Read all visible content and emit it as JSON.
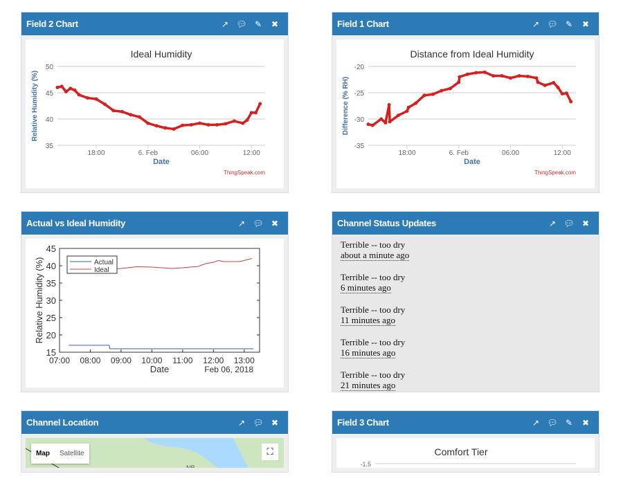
{
  "panels": {
    "p1": {
      "title": "Field 2 Chart"
    },
    "p2": {
      "title": "Field 1 Chart"
    },
    "p3": {
      "title": "Actual vs Ideal Humidity"
    },
    "p4": {
      "title": "Channel Status Updates"
    },
    "p5": {
      "title": "Channel Location"
    },
    "p6": {
      "title": "Field 3 Chart"
    }
  },
  "icons": [
    "external-link-icon",
    "comment-icon",
    "pencil-icon",
    "close-icon"
  ],
  "watermark": "ThingSpeak.com",
  "status_updates": [
    {
      "text": "Terrible -- too dry",
      "ago": "about a minute ago"
    },
    {
      "text": "Terrible -- too dry",
      "ago": "6 minutes ago"
    },
    {
      "text": "Terrible -- too dry",
      "ago": "11 minutes ago"
    },
    {
      "text": "Terrible -- too dry",
      "ago": "16 minutes ago"
    },
    {
      "text": "Terrible -- too dry",
      "ago": "21 minutes ago"
    }
  ],
  "map": {
    "map_label": "Map",
    "satellite_label": "Satellite",
    "region_label": "NB"
  },
  "colors": {
    "header": "#2c7bb6",
    "thingspeak_line": "#d62020",
    "actual": "#3060b0",
    "ideal": "#d04040"
  },
  "chart_data": [
    {
      "type": "line",
      "title": "Ideal Humidity",
      "xlabel": "Date",
      "ylabel": "Relative Humidity (%)",
      "ylim": [
        35,
        50
      ],
      "yticks": [
        35,
        40,
        45,
        50
      ],
      "xticks": [
        {
          "t": "2018-02-05 18:00",
          "label": "18:00"
        },
        {
          "t": "2018-02-06 00:00",
          "label": "6. Feb"
        },
        {
          "t": "2018-02-06 06:00",
          "label": "06:00"
        },
        {
          "t": "2018-02-06 12:00",
          "label": "12:00"
        }
      ],
      "xlim": [
        "2018-02-05 13:30",
        "2018-02-06 13:35"
      ],
      "grid": true,
      "x": [
        "2018-02-05 13:30",
        "2018-02-05 14:00",
        "2018-02-05 14:30",
        "2018-02-05 15:00",
        "2018-02-05 15:30",
        "2018-02-05 16:00",
        "2018-02-05 17:00",
        "2018-02-05 18:00",
        "2018-02-05 19:00",
        "2018-02-05 20:00",
        "2018-02-05 21:00",
        "2018-02-05 22:00",
        "2018-02-05 23:00",
        "2018-02-06 00:00",
        "2018-02-06 01:00",
        "2018-02-06 02:00",
        "2018-02-06 03:00",
        "2018-02-06 04:00",
        "2018-02-06 05:00",
        "2018-02-06 06:00",
        "2018-02-06 07:00",
        "2018-02-06 08:00",
        "2018-02-06 09:00",
        "2018-02-06 10:00",
        "2018-02-06 11:00",
        "2018-02-06 11:30",
        "2018-02-06 12:00",
        "2018-02-06 12:30",
        "2018-02-06 13:00"
      ],
      "values": [
        46,
        46.2,
        45.2,
        45.8,
        45.5,
        44.6,
        44,
        43.8,
        42.8,
        41.6,
        41.4,
        40.8,
        40.4,
        39.2,
        38.7,
        38.3,
        38.1,
        38.8,
        38.9,
        39.2,
        38.9,
        38.9,
        39.1,
        39.6,
        39.2,
        39.8,
        41.2,
        41.2,
        42.9
      ]
    },
    {
      "type": "line",
      "title": "Distance from Ideal Humidity",
      "xlabel": "Date",
      "ylabel": "Difference (% RH)",
      "ylim": [
        -35,
        -20
      ],
      "yticks": [
        -35,
        -30,
        -25,
        -20
      ],
      "xticks": [
        {
          "t": "2018-02-05 18:00",
          "label": "18:00"
        },
        {
          "t": "2018-02-06 00:00",
          "label": "6. Feb"
        },
        {
          "t": "2018-02-06 06:00",
          "label": "06:00"
        },
        {
          "t": "2018-02-06 12:00",
          "label": "12:00"
        }
      ],
      "xlim": [
        "2018-02-05 13:30",
        "2018-02-06 13:35"
      ],
      "grid": true,
      "x": [
        "2018-02-05 13:30",
        "2018-02-05 14:00",
        "2018-02-05 15:00",
        "2018-02-05 15:30",
        "2018-02-05 15:55",
        "2018-02-05 16:00",
        "2018-02-05 17:00",
        "2018-02-05 18:00",
        "2018-02-05 18:10",
        "2018-02-05 19:00",
        "2018-02-05 20:00",
        "2018-02-05 21:00",
        "2018-02-05 22:00",
        "2018-02-05 23:00",
        "2018-02-06 00:00",
        "2018-02-06 00:05",
        "2018-02-06 01:00",
        "2018-02-06 02:00",
        "2018-02-06 03:00",
        "2018-02-06 04:00",
        "2018-02-06 05:00",
        "2018-02-06 06:00",
        "2018-02-06 07:00",
        "2018-02-06 08:00",
        "2018-02-06 09:00",
        "2018-02-06 09:10",
        "2018-02-06 10:00",
        "2018-02-06 11:00",
        "2018-02-06 11:30",
        "2018-02-06 12:00",
        "2018-02-06 12:30",
        "2018-02-06 13:00"
      ],
      "values": [
        -31,
        -31.2,
        -30,
        -30.7,
        -27.3,
        -30.5,
        -29.3,
        -28.5,
        -27.8,
        -27,
        -25.5,
        -25.3,
        -24.6,
        -24.2,
        -23,
        -22,
        -21.5,
        -21.2,
        -21.1,
        -21.8,
        -21.8,
        -22.2,
        -21.8,
        -21.9,
        -22.2,
        -23,
        -23.6,
        -23.1,
        -24,
        -25.2,
        -25.1,
        -26.7
      ]
    },
    {
      "type": "line",
      "xlabel": "Date",
      "xlabel2": "Feb 06, 2018",
      "ylabel": "Relative Humidity (%)",
      "ylim": [
        15,
        45
      ],
      "yticks": [
        15,
        20,
        25,
        30,
        35,
        40,
        45
      ],
      "xticks": [
        {
          "t": "2018-02-06 07:00",
          "label": "07:00"
        },
        {
          "t": "2018-02-06 08:00",
          "label": "08:00"
        },
        {
          "t": "2018-02-06 09:00",
          "label": "09:00"
        },
        {
          "t": "2018-02-06 10:00",
          "label": "10:00"
        },
        {
          "t": "2018-02-06 11:00",
          "label": "11:00"
        },
        {
          "t": "2018-02-06 12:00",
          "label": "12:00"
        },
        {
          "t": "2018-02-06 13:00",
          "label": "13:00"
        }
      ],
      "xlim": [
        "2018-02-06 07:00",
        "2018-02-06 13:30"
      ],
      "grid": false,
      "legend": "top-left",
      "series": [
        {
          "name": "Actual",
          "x": [
            "2018-02-06 07:18",
            "2018-02-06 08:37",
            "2018-02-06 08:38",
            "2018-02-06 13:18"
          ],
          "values": [
            17,
            17,
            16,
            16
          ]
        },
        {
          "name": "Ideal",
          "x": [
            "2018-02-06 07:18",
            "2018-02-06 08:30",
            "2018-02-06 09:00",
            "2018-02-06 09:30",
            "2018-02-06 10:00",
            "2018-02-06 10:40",
            "2018-02-06 11:00",
            "2018-02-06 11:30",
            "2018-02-06 11:45",
            "2018-02-06 12:00",
            "2018-02-06 12:10",
            "2018-02-06 12:20",
            "2018-02-06 12:50",
            "2018-02-06 13:00",
            "2018-02-06 13:15"
          ],
          "values": [
            39,
            39,
            39.2,
            39.7,
            39.6,
            39.2,
            39.4,
            39.8,
            40.6,
            41,
            41.5,
            41.2,
            41.2,
            41.5,
            42.1
          ]
        }
      ]
    },
    {
      "type": "line",
      "title": "Comfort Tier",
      "yticks": [
        -1.5
      ]
    }
  ]
}
